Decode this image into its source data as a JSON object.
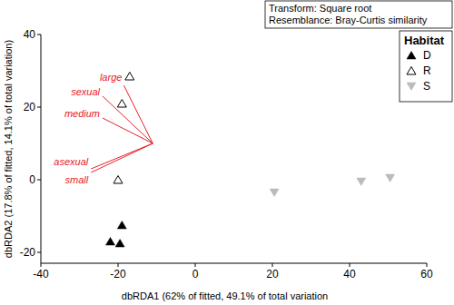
{
  "chart_data": {
    "type": "scatter",
    "x_label": "dbRDA1 (62% of fitted, 49.1% of total variation",
    "y_label": "dbRDA2 (17.8% of fitted, 14.1% of total variation)",
    "annotations": [
      "Transform: Square root",
      "Resemblance: Bray-Curtis similarity"
    ],
    "legend_title": "Habitat",
    "legend": "top-right",
    "xlim": [
      -40,
      60
    ],
    "ylim": [
      -23,
      40
    ],
    "xticks": [
      -40,
      -20,
      0,
      20,
      40,
      60
    ],
    "yticks": [
      -20,
      0,
      20,
      40
    ],
    "grid": false,
    "series": [
      {
        "name": "D",
        "color": "#000000",
        "marker": "triangle",
        "x": [
          -22,
          -19.5,
          -19
        ],
        "y": [
          -17,
          -17.5,
          -12.5
        ]
      },
      {
        "name": "R",
        "color": "#000000",
        "marker": "triangle-open",
        "x": [
          -20,
          -19,
          -17
        ],
        "y": [
          0,
          21,
          28.5
        ]
      },
      {
        "name": "S",
        "color": "#bbbbbb",
        "marker": "triangle-down",
        "x": [
          20.5,
          43,
          50.5
        ],
        "y": [
          -3.5,
          -0.5,
          0.5
        ]
      }
    ],
    "vector_origin": {
      "x": -11,
      "y": 10
    },
    "vectors": [
      {
        "name": "large",
        "x": -18.5,
        "y": 26,
        "color": "#e8202a"
      },
      {
        "name": "sexual",
        "x": -24,
        "y": 23,
        "color": "#e8202a"
      },
      {
        "name": "medium",
        "x": -24,
        "y": 17,
        "color": "#e8202a"
      },
      {
        "name": "asexual",
        "x": -27,
        "y": 3,
        "color": "#e8202a"
      },
      {
        "name": "small",
        "x": -27,
        "y": 2,
        "color": "#e8202a"
      }
    ]
  }
}
